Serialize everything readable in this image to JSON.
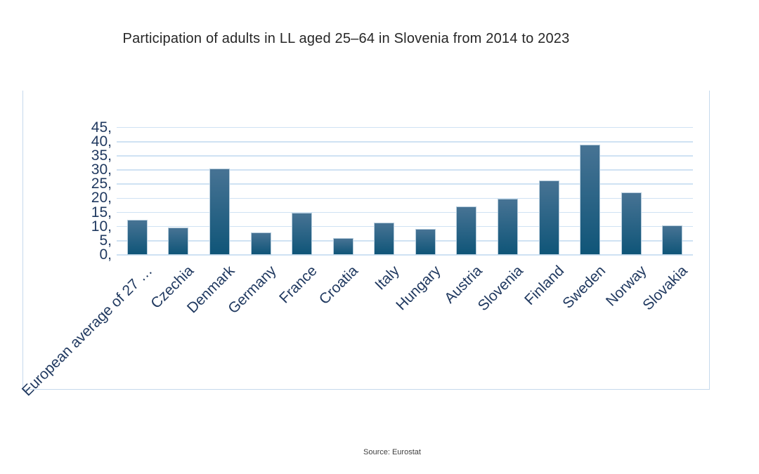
{
  "title": {
    "text": "Participation of adults in LL aged 25–64 in Slovenia from 2014 to 2023"
  },
  "source": {
    "text": "Source: Eurostat"
  },
  "chart_data": {
    "type": "bar",
    "title": "Participation of adults in LL aged 25–64 in Slovenia from 2014 to 2023",
    "categories": [
      "European average of 27 …",
      "Czechia",
      "Denmark",
      "Germany",
      "France",
      "Croatia",
      "Italy",
      "Hungary",
      "Austria",
      "Slovenia",
      "Finland",
      "Sweden",
      "Norway",
      "Slovakia"
    ],
    "values": [
      12.5,
      9.6,
      30.6,
      7.9,
      14.8,
      6.0,
      11.5,
      9.3,
      17.2,
      19.9,
      26.4,
      39.0,
      22.2,
      10.5
    ],
    "xlabel": "",
    "ylabel": "",
    "ylim": [
      0,
      45
    ],
    "ytick_step": 5,
    "ytick_labels": [
      "0,",
      "5,",
      "10,",
      "15,",
      "20,",
      "25,",
      "30,",
      "35,",
      "40,",
      "45,"
    ],
    "grid": "horizontal-only",
    "legend_position": "none",
    "colors": {
      "bar_gradient_top": "#477394",
      "bar_gradient_bottom": "#0f5578",
      "bar_border": "#b7cddd",
      "gridline": "#cfe2f3",
      "tick_label": "#1f385f",
      "panel_border": "#c5d9ec",
      "title": "#262626",
      "source": "#404040"
    }
  }
}
